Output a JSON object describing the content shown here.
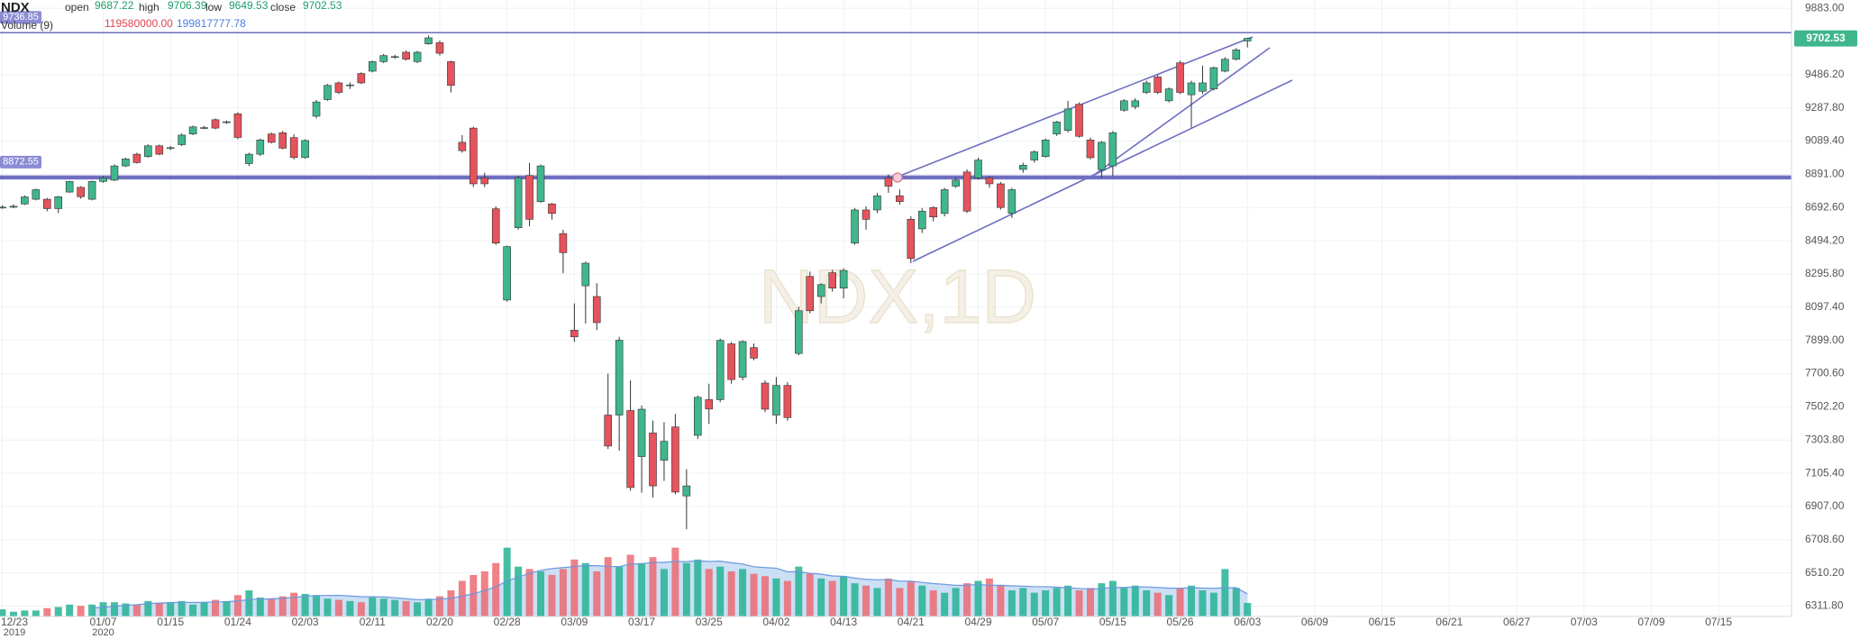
{
  "chart_data": {
    "type": "candlestick",
    "title": "NDX",
    "header_labels": [
      "open",
      "high",
      "low",
      "close"
    ],
    "volume_title": "Volume (9)",
    "volume_readout": {
      "value": 119580000,
      "label": "119580000.00"
    },
    "volume_ma_readout": {
      "value": 199817777.78,
      "label": "199817777.78"
    },
    "watermark": "NDX,1D",
    "up_color": "#3fb68b",
    "down_color": "#e5535c",
    "volume_up_color": "#26b393",
    "volume_down_color": "#ec6b72",
    "volume_ma_color": "#6b97de",
    "volume_ma_fill": "#b9d4f1",
    "hline_color": "#6f6fc2",
    "grid": true,
    "xlim": [
      -0.2,
      159.5
    ],
    "xticks": [
      {
        "value": 0,
        "label": "12/23"
      },
      {
        "value": 9,
        "label": "01/07"
      },
      {
        "value": 15,
        "label": "01/15"
      },
      {
        "value": 21,
        "label": "01/24"
      },
      {
        "value": 27,
        "label": "02/03"
      },
      {
        "value": 33,
        "label": "02/11"
      },
      {
        "value": 39,
        "label": "02/20"
      },
      {
        "value": 45,
        "label": "02/28"
      },
      {
        "value": 51,
        "label": "03/09"
      },
      {
        "value": 57,
        "label": "03/17"
      },
      {
        "value": 63,
        "label": "03/25"
      },
      {
        "value": 69,
        "label": "04/02"
      },
      {
        "value": 75,
        "label": "04/13"
      },
      {
        "value": 81,
        "label": "04/21"
      },
      {
        "value": 87,
        "label": "04/29"
      },
      {
        "value": 93,
        "label": "05/07"
      },
      {
        "value": 99,
        "label": "05/15"
      },
      {
        "value": 105,
        "label": "05/26"
      },
      {
        "value": 111,
        "label": "06/03"
      },
      {
        "value": 117,
        "label": "06/09"
      },
      {
        "value": 123,
        "label": "06/15"
      },
      {
        "value": 129,
        "label": "06/21"
      },
      {
        "value": 135,
        "label": "06/27"
      },
      {
        "value": 141,
        "label": "07/03"
      },
      {
        "value": 147,
        "label": "07/09"
      },
      {
        "value": 153,
        "label": "07/15"
      }
    ],
    "year_ticks": [
      {
        "value": 0,
        "label": "2019"
      },
      {
        "value": 9,
        "label": "2020"
      }
    ],
    "ylim": [
      6250,
      9932
    ],
    "yticks": [
      {
        "value": 9883,
        "label": "9883.00"
      },
      {
        "value": 9486.2,
        "label": "9486.20"
      },
      {
        "value": 9287.8,
        "label": "9287.80"
      },
      {
        "value": 9089.4,
        "label": "9089.40"
      },
      {
        "value": 8891,
        "label": "8891.00"
      },
      {
        "value": 8692.6,
        "label": "8692.60"
      },
      {
        "value": 8494.2,
        "label": "8494.20"
      },
      {
        "value": 8295.8,
        "label": "8295.80"
      },
      {
        "value": 8097.4,
        "label": "8097.40"
      },
      {
        "value": 7899,
        "label": "7899.00"
      },
      {
        "value": 7700.6,
        "label": "7700.60"
      },
      {
        "value": 7502.2,
        "label": "7502.20"
      },
      {
        "value": 7303.8,
        "label": "7303.80"
      },
      {
        "value": 7105.4,
        "label": "7105.40"
      },
      {
        "value": 6907,
        "label": "6907.00"
      },
      {
        "value": 6708.6,
        "label": "6708.60"
      },
      {
        "value": 6510.2,
        "label": "6510.20"
      },
      {
        "value": 6311.8,
        "label": "6311.80"
      }
    ],
    "hlines": [
      9736.85,
      8872.55
    ],
    "volume_ylim": [
      0,
      1300000000
    ],
    "open": [
      8692,
      8695,
      8714,
      8742,
      8742,
      8686,
      8785,
      8813,
      8742,
      8848,
      8856,
      8941,
      9011,
      8997,
      9061,
      9045,
      9068,
      9132,
      9165,
      9217,
      9200,
      9252,
      8955,
      9011,
      9132,
      9139,
      9110,
      8991,
      9238,
      9337,
      9437,
      9420,
      9493,
      9507,
      9564,
      9590,
      9620,
      9564,
      9670,
      9677,
      9564,
      9082,
      9167,
      8870,
      8685,
      8140,
      8572,
      8884,
      8728,
      8714,
      8537,
      7960,
      8225,
      8161,
      7453,
      7453,
      7480,
      7205,
      7346,
      7183,
      7382,
      6970,
      7332,
      7545,
      7545,
      7878,
      7679,
      7856,
      7644,
      7453,
      7630,
      7821,
      8281,
      8161,
      8303,
      8211,
      8480,
      8678,
      8678,
      8870,
      8763,
      8622,
      8565,
      8692,
      8657,
      8820,
      8905,
      8870,
      8870,
      8834,
      8657,
      8920,
      8976,
      8997,
      9132,
      9153,
      9309,
      9096,
      8919,
      8941,
      9274,
      9295,
      9380,
      9472,
      9330,
      9557,
      9366,
      9387,
      9401,
      9507,
      9578,
      9687.22
    ],
    "high": [
      8705,
      8712,
      8765,
      8805,
      8750,
      8762,
      8852,
      8820,
      8853,
      8880,
      8950,
      8990,
      9020,
      9070,
      9068,
      9060,
      9135,
      9182,
      9180,
      9225,
      9212,
      9262,
      9020,
      9105,
      9140,
      9150,
      9130,
      9100,
      9335,
      9430,
      9445,
      9440,
      9500,
      9570,
      9610,
      9605,
      9630,
      9628,
      9720,
      9690,
      9570,
      9125,
      9175,
      8900,
      8700,
      8465,
      8880,
      8960,
      8950,
      8720,
      8560,
      8120,
      8370,
      8240,
      7700,
      7920,
      7660,
      7510,
      7420,
      7410,
      7460,
      7130,
      7570,
      7640,
      7910,
      7890,
      7900,
      7880,
      7660,
      7680,
      7650,
      8100,
      8310,
      8240,
      8320,
      8330,
      8690,
      8700,
      8780,
      8890,
      8800,
      8640,
      8690,
      8700,
      8810,
      8870,
      8920,
      8990,
      8880,
      8845,
      8810,
      8960,
      9035,
      9105,
      9210,
      9330,
      9320,
      9110,
      9090,
      9150,
      9340,
      9345,
      9450,
      9485,
      9410,
      9570,
      9450,
      9540,
      9535,
      9590,
      9645,
      9706.39
    ],
    "low": [
      8685,
      8688,
      8708,
      8735,
      8670,
      8660,
      8780,
      8745,
      8735,
      8840,
      8850,
      8935,
      8955,
      8990,
      9005,
      9035,
      9060,
      9125,
      9160,
      9160,
      9192,
      9100,
      8940,
      9000,
      9075,
      9040,
      8980,
      8985,
      9225,
      9330,
      9370,
      9400,
      9430,
      9500,
      9555,
      9580,
      9570,
      9555,
      9665,
      9600,
      9380,
      9020,
      8815,
      8815,
      8470,
      8130,
      8560,
      8580,
      8720,
      8620,
      8300,
      7890,
      8000,
      7960,
      7250,
      7240,
      7000,
      6990,
      6960,
      7060,
      6980,
      6771,
      7310,
      7400,
      7530,
      7640,
      7660,
      7780,
      7470,
      7400,
      7420,
      7810,
      8060,
      8120,
      8190,
      8150,
      8470,
      8560,
      8660,
      8780,
      8710,
      8360,
      8540,
      8610,
      8640,
      8810,
      8660,
      8860,
      8810,
      8680,
      8630,
      8900,
      8960,
      8990,
      9120,
      9140,
      9110,
      8980,
      8870,
      8880,
      9265,
      9280,
      9370,
      9370,
      9320,
      9370,
      9170,
      9370,
      9390,
      9500,
      9570,
      9649.53
    ],
    "close": [
      8695,
      8700,
      8756,
      8799,
      8686,
      8757,
      8848,
      8757,
      8848,
      8870,
      8941,
      8983,
      8961,
      9061,
      9011,
      9050,
      9125,
      9174,
      9170,
      9167,
      9205,
      9111,
      9011,
      9096,
      9082,
      9047,
      8991,
      9093,
      9323,
      9422,
      9380,
      9425,
      9437,
      9564,
      9600,
      9594,
      9578,
      9620,
      9706,
      9614,
      9422,
      9032,
      8834,
      8834,
      8480,
      8459,
      8870,
      8622,
      8941,
      8657,
      8423,
      7920,
      8360,
      8005,
      7268,
      7900,
      7020,
      7488,
      7030,
      7296,
      6993,
      7030,
      7559,
      7489,
      7899,
      7665,
      7892,
      7793,
      7488,
      7630,
      7438,
      8076,
      8076,
      8232,
      8211,
      8317,
      8678,
      8622,
      8763,
      8820,
      8728,
      8388,
      8671,
      8636,
      8799,
      8856,
      8671,
      8976,
      8834,
      8693,
      8799,
      8945,
      9025,
      9096,
      9203,
      9281,
      9118,
      8990,
      9082,
      9139,
      9330,
      9330,
      9437,
      9380,
      9401,
      9380,
      9437,
      9437,
      9528,
      9578,
      9634,
      9702.53
    ],
    "volume": [
      63000000,
      42000000,
      52500000,
      52500000,
      73500000,
      84000000,
      105000000,
      94500000,
      105000000,
      126000000,
      126000000,
      115500000,
      105000000,
      136500000,
      115500000,
      126000000,
      136500000,
      105000000,
      126000000,
      147000000,
      136500000,
      189000000,
      231000000,
      168000000,
      157500000,
      178500000,
      210000000,
      199500000,
      189000000,
      157500000,
      147000000,
      136500000,
      126000000,
      168000000,
      157500000,
      147000000,
      136500000,
      126000000,
      157500000,
      178500000,
      231000000,
      315000000,
      367500000,
      399000000,
      472500000,
      609000000,
      441000000,
      420000000,
      399000000,
      367500000,
      420000000,
      504000000,
      472500000,
      399000000,
      525000000,
      441000000,
      546000000,
      472500000,
      525000000,
      420000000,
      609000000,
      472500000,
      504000000,
      420000000,
      441000000,
      399000000,
      420000000,
      378000000,
      357000000,
      336000000,
      315000000,
      441000000,
      378000000,
      336000000,
      315000000,
      357000000,
      294000000,
      273000000,
      252000000,
      336000000,
      252000000,
      315000000,
      273000000,
      231000000,
      210000000,
      252000000,
      294000000,
      315000000,
      336000000,
      273000000,
      231000000,
      252000000,
      210000000,
      231000000,
      252000000,
      273000000,
      231000000,
      252000000,
      294000000,
      315000000,
      252000000,
      273000000,
      231000000,
      210000000,
      189000000,
      252000000,
      273000000,
      231000000,
      210000000,
      420000000,
      252000000,
      119580000
    ],
    "volume_ma": [
      null,
      null,
      null,
      null,
      null,
      null,
      null,
      null,
      74600000,
      81900000,
      91400000,
      97700000,
      104000000,
      113400000,
      118700000,
      122900000,
      125000000,
      123900000,
      126000000,
      128100000,
      130200000,
      137600000,
      149100000,
      153300000,
      156500000,
      160700000,
      169000000,
      179600000,
      184800000,
      185900000,
      186900000,
      181700000,
      175400000,
      174300000,
      172200000,
      165900000,
      156500000,
      149100000,
      149100000,
      153300000,
      161700000,
      179600000,
      201600000,
      228900000,
      262500000,
      315000000,
      348600000,
      381200000,
      408500000,
      424200000,
      432600000,
      442100000,
      450500000,
      449400000,
      443100000,
      441000000,
      464100000,
      466200000,
      478800000,
      478800000,
      487200000,
      485100000,
      492500000,
      487200000,
      489300000,
      475700000,
      464100000,
      440000000,
      432600000,
      427400000,
      395900000,
      395900000,
      382200000,
      373800000,
      359100000,
      354900000,
      340200000,
      328700000,
      324500000,
      326600000,
      312900000,
      311900000,
      301400000,
      290900000,
      284600000,
      275100000,
      276200000,
      283500000,
      275100000,
      276200000,
      270900000,
      268800000,
      264600000,
      263600000,
      259400000,
      253100000,
      247800000,
      242600000,
      247800000,
      256200000,
      256200000,
      261500000,
      261500000,
      256200000,
      251000000,
      249900000,
      254100000,
      251000000,
      248900000,
      254100000,
      254100000,
      199817777.78
    ]
  }
}
